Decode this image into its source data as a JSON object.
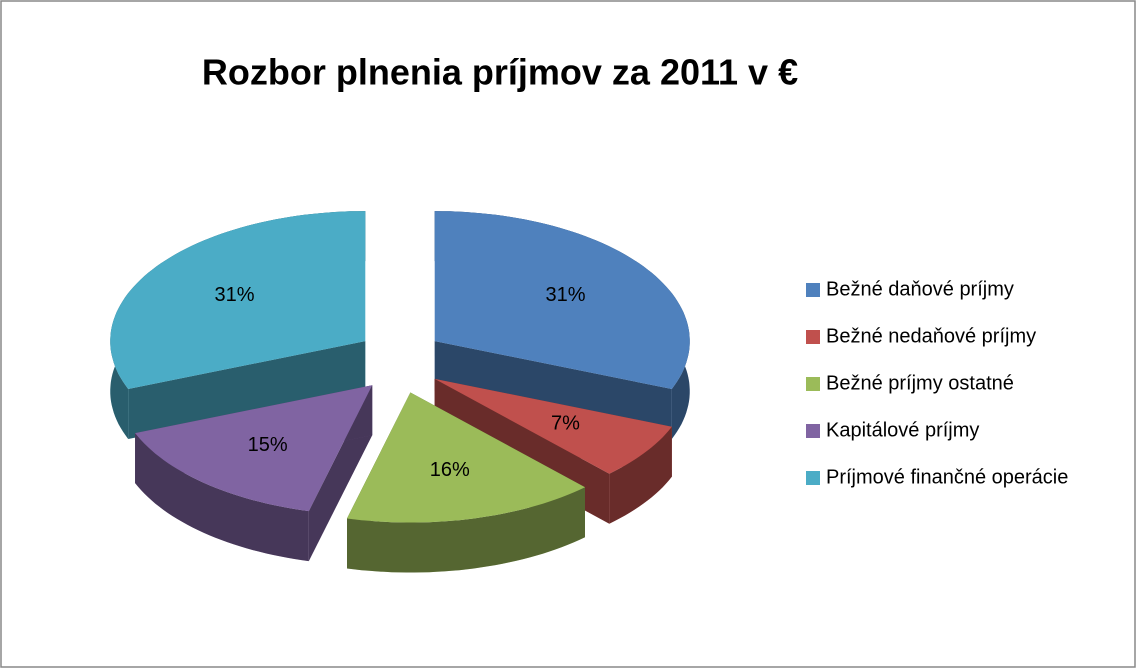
{
  "chart_data": {
    "type": "pie3d",
    "title": "Rozbor plnenia príjmov za 2011 v €",
    "categories": [
      "Bežné daňové príjmy",
      "Bežné nedaňové príjmy",
      "Bežné príjmy ostatné",
      "Kapitálové príjmy",
      "Príjmové finančné operácie"
    ],
    "values": [
      31,
      7,
      16,
      15,
      31
    ],
    "value_labels": [
      "31%",
      "7%",
      "16%",
      "15%",
      "31%"
    ],
    "colors": [
      "#4f81bd",
      "#c0504d",
      "#9bbb59",
      "#8064a2",
      "#4bacc6"
    ],
    "legend": "right"
  }
}
